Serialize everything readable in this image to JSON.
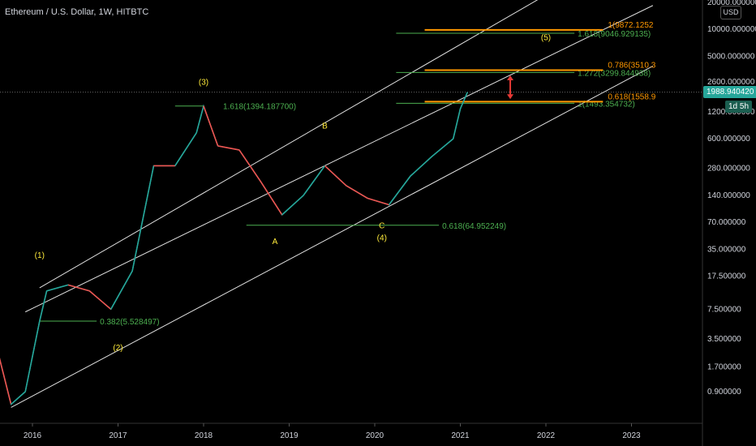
{
  "header": {
    "title": "Ethereum / U.S. Dollar, 1W, HITBTC",
    "currency_button": "USD"
  },
  "price_badge": {
    "value": "1988.940420",
    "countdown": "1d 5h"
  },
  "chart_data": {
    "type": "line",
    "title": "Ethereum / U.S. Dollar, 1W, HITBTC",
    "yscale": "log",
    "y_ticks": [
      "20000.000000",
      "10000.000000",
      "5000.000000",
      "2600.000000",
      "1200.000000",
      "600.000000",
      "280.000000",
      "140.000000",
      "70.000000",
      "35.000000",
      "17.500000",
      "7.500000",
      "3.500000",
      "1.700000",
      "0.900000"
    ],
    "x_ticks": [
      "2016",
      "2017",
      "2018",
      "2019",
      "2020",
      "2021",
      "2022",
      "2023"
    ],
    "series": [
      {
        "values": [
          [
            "2015-08",
            2.8
          ],
          [
            "2015-10",
            0.65
          ],
          [
            "2015-12",
            0.9
          ],
          [
            "2016-02",
            5.5
          ],
          [
            "2016-03",
            12
          ],
          [
            "2016-06",
            14
          ],
          [
            "2016-09",
            12
          ],
          [
            "2016-12",
            7.5
          ],
          [
            "2017-03",
            20
          ],
          [
            "2017-06",
            300
          ],
          [
            "2017-09",
            300
          ],
          [
            "2017-12",
            700
          ],
          [
            "2018-01",
            1394
          ],
          [
            "2018-03",
            500
          ],
          [
            "2018-06",
            450
          ],
          [
            "2018-09",
            200
          ],
          [
            "2018-12",
            85
          ],
          [
            "2019-03",
            140
          ],
          [
            "2019-06",
            300
          ],
          [
            "2019-09",
            180
          ],
          [
            "2019-12",
            130
          ],
          [
            "2020-03",
            110
          ],
          [
            "2020-06",
            230
          ],
          [
            "2020-09",
            380
          ],
          [
            "2020-12",
            600
          ],
          [
            "2021-01",
            1300
          ],
          [
            "2021-02",
            1988.94
          ]
        ]
      }
    ],
    "current_price": 1988.94042,
    "channel_lines": [
      {
        "from": [
          "2016-02",
          13
        ],
        "to": [
          "2021-12",
          21800
        ]
      },
      {
        "from": [
          "2015-10",
          0.6
        ],
        "to": [
          "2023-04",
          3900
        ]
      },
      {
        "from": [
          "2015-12",
          7
        ],
        "to": [
          "2023-04",
          18500
        ]
      }
    ],
    "fib_lines": [
      {
        "label": "1.618(1394.187700)",
        "value": 1394.1877,
        "from": "2017-09",
        "to": "2018-01",
        "color": "#4caf50"
      },
      {
        "label": "0.382(5.528497)",
        "value": 5.528497,
        "from": "2016-02",
        "to": "2016-10",
        "color": "#4caf50"
      },
      {
        "label": "0.618(64.952249)",
        "value": 64.952249,
        "from": "2018-07",
        "to": "2020-10",
        "color": "#4caf50"
      },
      {
        "label": "1.618(9046.929135)",
        "value": 9046.929135,
        "from": "2020-04",
        "to": "2022-05",
        "color": "#4caf50"
      },
      {
        "label": "1.272(3299.844938)",
        "value": 3299.844938,
        "from": "2020-04",
        "to": "2022-05",
        "color": "#4caf50"
      },
      {
        "label": "1(1493.354732)",
        "value": 1493.354732,
        "from": "2020-04",
        "to": "2022-05",
        "color": "#4caf50"
      },
      {
        "label": "1(9872.1252",
        "value": 9872.1252,
        "from": "2020-08",
        "to": "2022-09",
        "color": "#ff9800"
      },
      {
        "label": "0.786(3510.3",
        "value": 3510.3,
        "from": "2020-08",
        "to": "2022-09",
        "color": "#ff9800"
      },
      {
        "label": "0.618(1558.9",
        "value": 1558.9,
        "from": "2020-08",
        "to": "2022-09",
        "color": "#ff9800"
      }
    ],
    "wave_labels": [
      {
        "text": "(1)",
        "x": "2016-02",
        "y": 28
      },
      {
        "text": "(2)",
        "x": "2017-01",
        "y": 2.6
      },
      {
        "text": "(3)",
        "x": "2018-01",
        "y": 2400
      },
      {
        "text": "A",
        "x": "2018-11",
        "y": 40
      },
      {
        "text": "B",
        "x": "2019-06",
        "y": 780
      },
      {
        "text": "C",
        "x": "2020-02",
        "y": 60
      },
      {
        "text": "(4)",
        "x": "2020-02",
        "y": 44
      },
      {
        "text": "(5)",
        "x": "2022-01",
        "y": 7600
      }
    ],
    "target_arrow": {
      "x": "2021-08",
      "from": 1700,
      "to": 3000,
      "color": "#e53935"
    }
  }
}
